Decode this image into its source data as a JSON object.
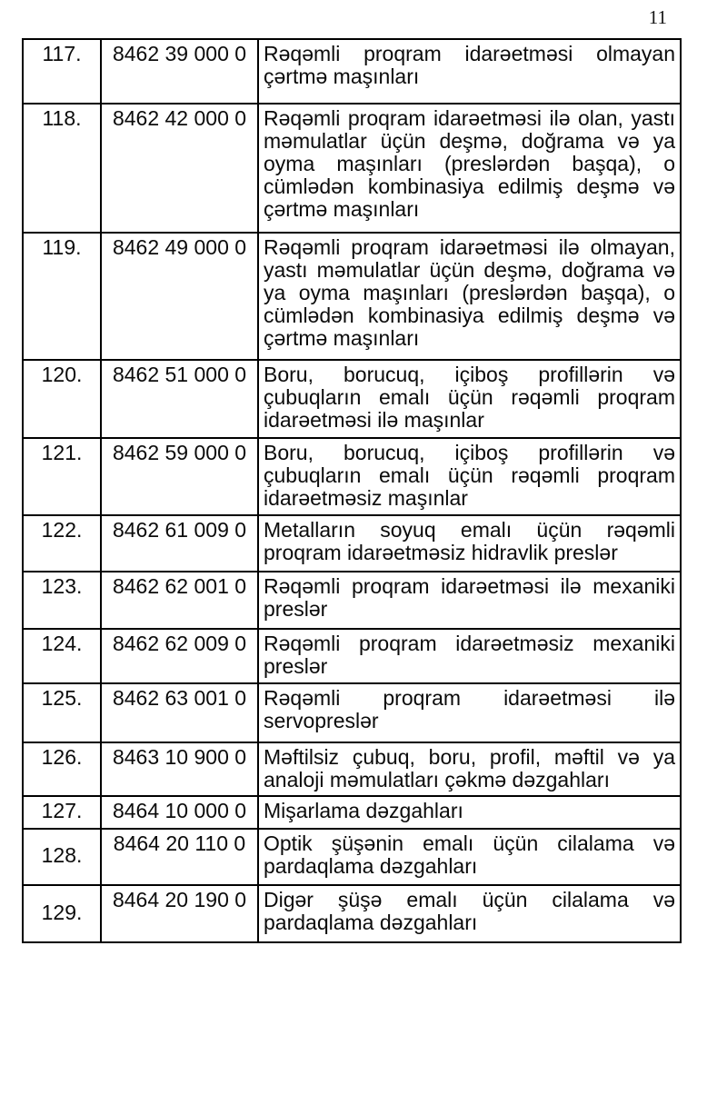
{
  "page": {
    "number": "11"
  },
  "table": {
    "rows": [
      {
        "no": "117.",
        "code": "8462 39 000 0",
        "desc": "Rəqəmli proqram idarəetməsi olmayan çərtmə maşınları"
      },
      {
        "no": "118.",
        "code": "8462 42 000 0",
        "desc": "Rəqəmli proqram idarəetməsi ilə olan, yastı məmulatlar üçün deşmə, doğrama və ya oyma maşınları (preslərdən başqa), o cümlədən kombinasiya edilmiş deşmə və çərtmə maşınları"
      },
      {
        "no": "119.",
        "code": "8462 49 000 0",
        "desc": "Rəqəmli proqram idarəetməsi ilə olmayan, yastı məmulatlar üçün deşmə, doğrama və ya oyma maşınları (preslərdən başqa), o cümlədən kombinasiya edilmiş deşmə və çərtmə maşınları"
      },
      {
        "no": "120.",
        "code": "8462 51 000 0",
        "desc": "Boru, borucuq, içiboş profillərin və çubuqların emalı üçün rəqəmli proqram idarəetməsi ilə maşınlar"
      },
      {
        "no": "121.",
        "code": "8462 59 000 0",
        "desc": "Boru, borucuq, içiboş profillərin və çubuqların emalı üçün rəqəmli proqram idarəetməsiz maşınlar"
      },
      {
        "no": "122.",
        "code": "8462 61 009 0",
        "desc": "Metalların soyuq emalı üçün rəqəmli proqram idarəetməsiz hidravlik preslər"
      },
      {
        "no": "123.",
        "code": "8462 62 001 0",
        "desc": "Rəqəmli proqram idarəetməsi ilə mexaniki preslər"
      },
      {
        "no": "124.",
        "code": "8462 62 009 0",
        "desc": "Rəqəmli proqram idarəetməsiz mexaniki preslər"
      },
      {
        "no": "125.",
        "code": "8462 63 001 0",
        "desc": "Rəqəmli proqram idarəetməsi ilə servopreslər"
      },
      {
        "no": "126.",
        "code": "8463 10 900 0",
        "desc": "Məftilsiz çubuq, boru, profil, məftil və ya analoji məmulatları çəkmə dəzgahları"
      },
      {
        "no": "127.",
        "code": "8464 10 000 0",
        "desc": "Mişarlama dəzgahları"
      },
      {
        "no": "128.",
        "code": "8464 20 110 0",
        "desc": "Optik şüşənin emalı üçün cilalama və pardaqlama dəzgahları"
      },
      {
        "no": "129.",
        "code": "8464 20 190 0",
        "desc": "Digər şüşə emalı üçün cilalama və pardaqlama dəzgahları"
      }
    ]
  }
}
